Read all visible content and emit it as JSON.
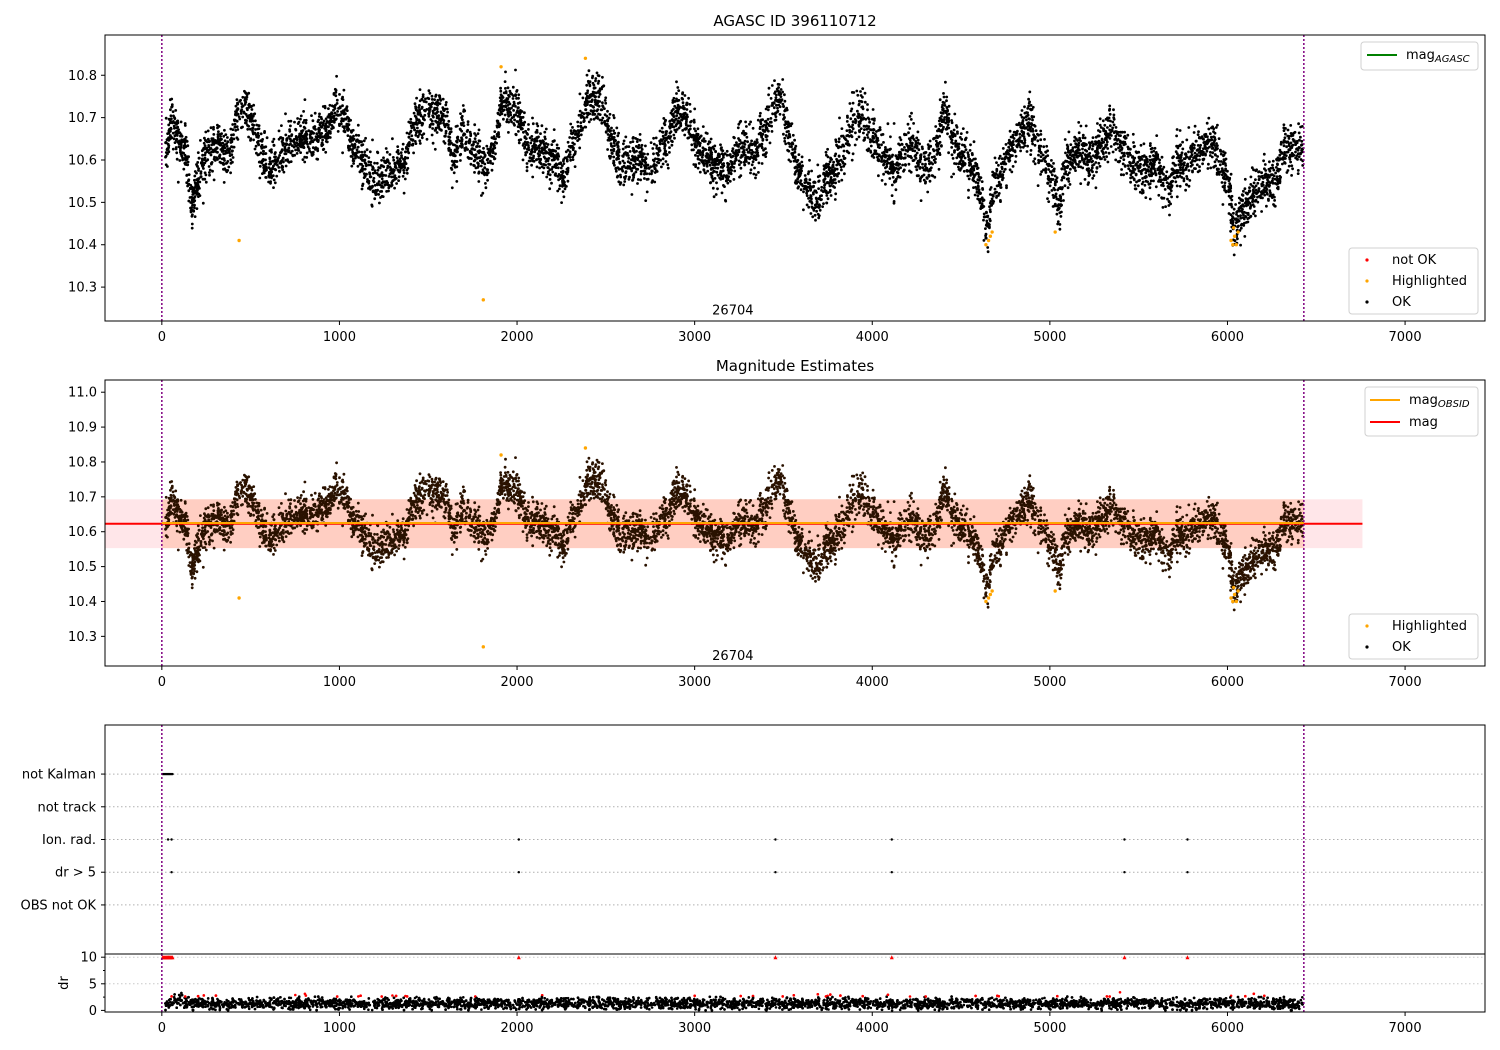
{
  "figure": {
    "colors": {
      "ok": "#000000",
      "highlighted": "#ffa500",
      "not_ok": "#ff0000",
      "agasc_line": "#008000",
      "mag_line": "#ff0000",
      "obsid_line": "#ffa500",
      "band": "#ffb6c1",
      "band_orange": "#ffa07a",
      "obs_boundary": "#800080"
    }
  },
  "chart_data": [
    {
      "type": "scatter",
      "title": "AGASC ID 396110712",
      "xlabel": "",
      "ylabel": "",
      "xlim": [
        -320,
        7450
      ],
      "ylim": [
        10.22,
        10.895
      ],
      "xticks": [
        0,
        1000,
        2000,
        3000,
        4000,
        5000,
        6000,
        7000
      ],
      "yticks": [
        10.3,
        10.4,
        10.5,
        10.6,
        10.7,
        10.8
      ],
      "ytick_labels": [
        "10.3",
        "10.4",
        "10.5",
        "10.6",
        "10.7",
        "10.8"
      ],
      "obs_boundaries": [
        0,
        6430
      ],
      "obsid_label": {
        "text": "26704",
        "x": 3215,
        "y": 10.235
      },
      "series": [
        {
          "name": "not OK",
          "marker": "dot",
          "points": []
        },
        {
          "name": "Highlighted",
          "marker": "dot",
          "points": [
            [
              435,
              10.41
            ],
            [
              1810,
              10.27
            ],
            [
              1910,
              10.82
            ],
            [
              2385,
              10.84
            ],
            [
              4640,
              10.4
            ],
            [
              4655,
              10.41
            ],
            [
              4665,
              10.42
            ],
            [
              4675,
              10.43
            ],
            [
              5030,
              10.43
            ],
            [
              6020,
              10.41
            ],
            [
              6030,
              10.4
            ],
            [
              6040,
              10.42
            ],
            [
              6050,
              10.4
            ],
            [
              6060,
              10.43
            ],
            [
              6035,
              10.44
            ]
          ]
        },
        {
          "name": "OK",
          "marker": "dot",
          "generated": "stellar-light-curve",
          "n_points": 6420,
          "x_range": [
            20,
            6425
          ],
          "mean": 10.62
        }
      ],
      "legend": [
        {
          "label": "mag",
          "sub": "AGASC",
          "kind": "line",
          "color": "#008000",
          "location": "top-right"
        },
        {
          "label": "not OK",
          "kind": "dot",
          "color": "#ff0000",
          "location": "bottom-right"
        },
        {
          "label": "Highlighted",
          "kind": "dot",
          "color": "#ffa500",
          "location": "bottom-right"
        },
        {
          "label": "OK",
          "kind": "dot",
          "color": "#000000",
          "location": "bottom-right"
        }
      ]
    },
    {
      "type": "scatter",
      "title": "Magnitude Estimates",
      "xlim": [
        -320,
        7450
      ],
      "ylim": [
        10.215,
        11.035
      ],
      "xticks": [
        0,
        1000,
        2000,
        3000,
        4000,
        5000,
        6000,
        7000
      ],
      "yticks": [
        10.3,
        10.4,
        10.5,
        10.6,
        10.7,
        10.8,
        10.9,
        11.0
      ],
      "ytick_labels": [
        "10.3",
        "10.4",
        "10.5",
        "10.6",
        "10.7",
        "10.8",
        "10.9",
        "11.0"
      ],
      "obs_boundaries": [
        0,
        6430
      ],
      "obsid_label": {
        "text": "26704",
        "x": 3215,
        "y": 10.232
      },
      "mag_line": {
        "y": 10.623,
        "band": [
          10.553,
          10.693
        ],
        "x_range": [
          -320,
          6760
        ]
      },
      "obsid_line": {
        "y": 10.625,
        "band": [
          10.553,
          10.693
        ],
        "x_range": [
          0,
          6430
        ]
      },
      "legend": [
        {
          "label": "mag",
          "sub": "OBSID",
          "kind": "line",
          "color": "#ffa500",
          "location": "top-right"
        },
        {
          "label": "mag",
          "kind": "line",
          "color": "#ff0000",
          "location": "top-right"
        },
        {
          "label": "Highlighted",
          "kind": "dot",
          "color": "#ffa500",
          "location": "bottom-right"
        },
        {
          "label": "OK",
          "kind": "dot",
          "color": "#000000",
          "location": "bottom-right"
        }
      ]
    },
    {
      "type": "scatter",
      "title": "",
      "xlim": [
        -320,
        7450
      ],
      "ylim": [
        -0.5,
        6.5
      ],
      "xticks": [
        0,
        1000,
        2000,
        3000,
        4000,
        5000,
        6000,
        7000
      ],
      "obs_boundaries": [
        0,
        6430
      ],
      "categories": [
        "not Kalman",
        "not track",
        "Ion. rad.",
        "dr > 5",
        "OBS not OK"
      ],
      "category_y": [
        5,
        4,
        3,
        2,
        1
      ],
      "flag_points": [
        {
          "category": "not Kalman",
          "x": [
            5,
            10,
            15,
            20,
            25,
            30,
            35,
            40,
            45,
            50,
            55,
            60
          ]
        },
        {
          "category": "not track",
          "x": []
        },
        {
          "category": "Ion. rad.",
          "x": [
            35,
            55,
            2010,
            3455,
            4110,
            5420,
            5775
          ]
        },
        {
          "category": "dr > 5",
          "x": [
            55,
            2010,
            3455,
            4110,
            5420,
            5775
          ]
        },
        {
          "category": "OBS not OK",
          "x": []
        }
      ]
    },
    {
      "type": "scatter",
      "title": "",
      "ylabel": "dr",
      "xlim": [
        -320,
        7450
      ],
      "ylim": [
        -0.3,
        10.6
      ],
      "xticks": [
        0,
        1000,
        2000,
        3000,
        4000,
        5000,
        6000,
        7000
      ],
      "xtick_labels": [
        "0",
        "1000",
        "2000",
        "3000",
        "4000",
        "5000",
        "6000",
        "7000"
      ],
      "yticks": [
        0,
        5,
        10
      ],
      "ytick_labels": [
        "0",
        "5",
        "10"
      ],
      "obs_boundaries": [
        0,
        6430
      ],
      "clip_at": 10,
      "red_clipped_x": [
        5,
        10,
        15,
        20,
        25,
        30,
        35,
        40,
        45,
        50,
        55,
        60,
        2010,
        3455,
        4110,
        5420,
        5775
      ],
      "series": [
        {
          "name": "dr",
          "generated": "residual-noise",
          "n_points": 6420,
          "x_range": [
            20,
            6425
          ],
          "mean": 1.3
        }
      ]
    }
  ]
}
